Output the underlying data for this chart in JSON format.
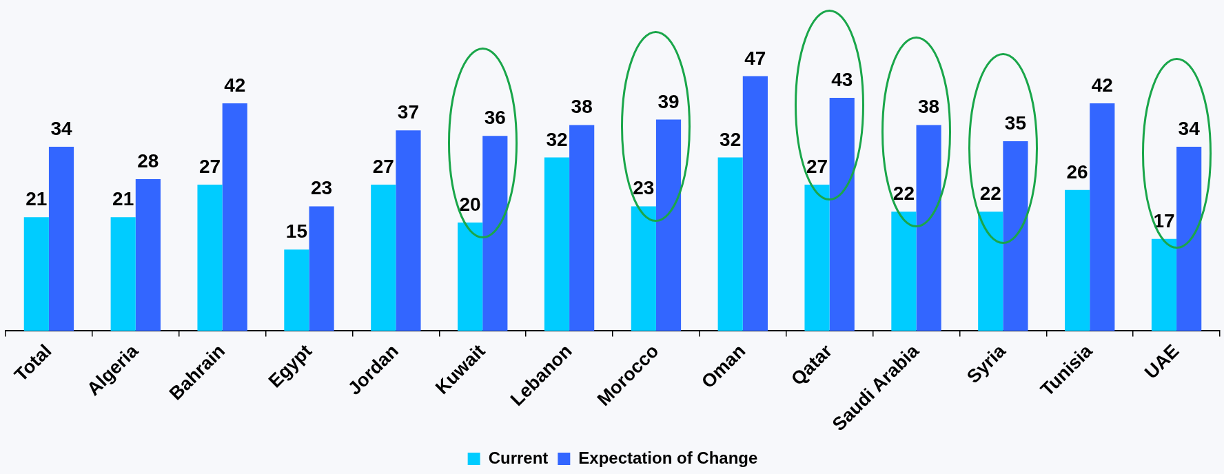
{
  "chart_data": {
    "type": "bar",
    "categories": [
      "Total",
      "Algeria",
      "Bahrain",
      "Egypt",
      "Jordan",
      "Kuwait",
      "Lebanon",
      "Morocco",
      "Oman",
      "Qatar",
      "Saudi Arabia",
      "Syria",
      "Tunisia",
      "UAE"
    ],
    "series": [
      {
        "name": "Current",
        "color": "#00ccff",
        "values": [
          21,
          21,
          27,
          15,
          27,
          20,
          32,
          23,
          32,
          27,
          22,
          22,
          26,
          17
        ]
      },
      {
        "name": "Expectation of Change",
        "color": "#3366ff",
        "values": [
          34,
          28,
          42,
          23,
          37,
          36,
          38,
          39,
          47,
          43,
          38,
          35,
          42,
          34
        ]
      }
    ],
    "data_labels": true,
    "legend": "bottom"
  }
}
